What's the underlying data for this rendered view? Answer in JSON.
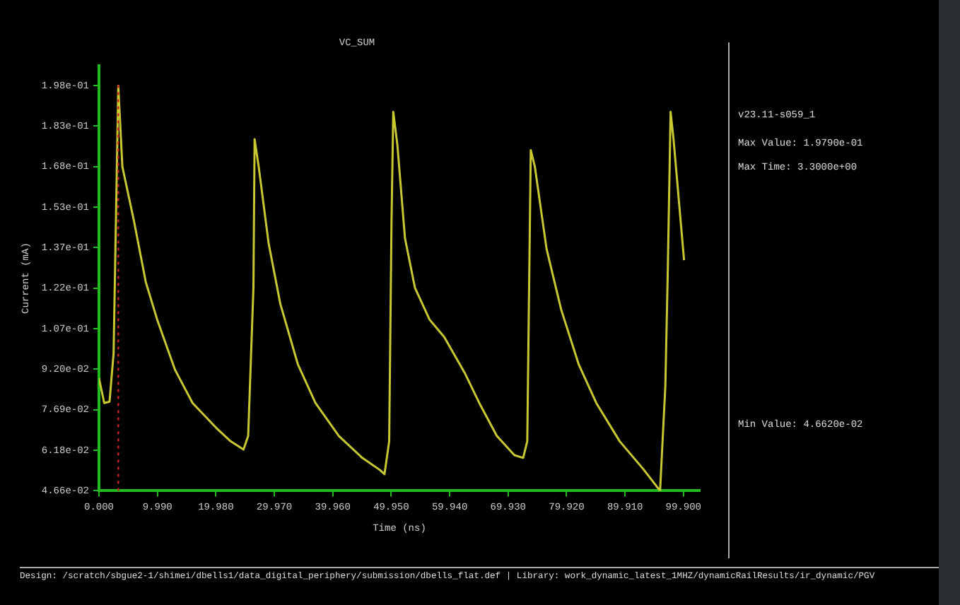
{
  "chart_data": {
    "type": "line",
    "title": "VC_SUM",
    "xlabel": "Time (ns)",
    "ylabel": "Current (mA)",
    "marker": "none",
    "line_style": "solid",
    "x": [
      0,
      0.9,
      1.8,
      2.5,
      3.3,
      4.0,
      6,
      8,
      10,
      13,
      16,
      20,
      22.5,
      24.7,
      25.5,
      26.4,
      26.6,
      27.3,
      29,
      31,
      34,
      37,
      41,
      45,
      48,
      48.8,
      49.6,
      50,
      50.3,
      51,
      52.3,
      54,
      56.5,
      59,
      62.5,
      65,
      68,
      71,
      72.5,
      73.2,
      73.8,
      74.5,
      76.5,
      79,
      82,
      85,
      89,
      93,
      95.9,
      96.8,
      97.2,
      97.7,
      98.2,
      100
    ],
    "series": [
      {
        "color": "#c8c830",
        "values": [
          0.0887,
          0.0794,
          0.0799,
          0.098,
          0.1979,
          0.1677,
          0.1472,
          0.1246,
          0.1102,
          0.0918,
          0.0794,
          0.0702,
          0.0651,
          0.062,
          0.0671,
          0.1225,
          0.178,
          0.1677,
          0.139,
          0.1164,
          0.0938,
          0.0794,
          0.0671,
          0.0589,
          0.0544,
          0.0528,
          0.0651,
          0.1472,
          0.1882,
          0.1759,
          0.141,
          0.1225,
          0.1106,
          0.1041,
          0.0907,
          0.0794,
          0.0671,
          0.0599,
          0.0589,
          0.0651,
          0.1739,
          0.1677,
          0.137,
          0.1143,
          0.0938,
          0.0794,
          0.0651,
          0.0548,
          0.0466,
          0.0856,
          0.1266,
          0.1882,
          0.178,
          0.1328
        ]
      }
    ],
    "xlim": [
      0,
      102.7
    ],
    "ylim": [
      0.0466,
      0.2055
    ],
    "xticks": [
      {
        "value": 0,
        "label": "0.000"
      },
      {
        "value": 9.99,
        "label": "9.990"
      },
      {
        "value": 19.98,
        "label": "19.980"
      },
      {
        "value": 29.97,
        "label": "29.970"
      },
      {
        "value": 39.96,
        "label": "39.960"
      },
      {
        "value": 49.95,
        "label": "49.950"
      },
      {
        "value": 59.94,
        "label": "59.940"
      },
      {
        "value": 69.93,
        "label": "69.930"
      },
      {
        "value": 79.92,
        "label": "79.920"
      },
      {
        "value": 89.91,
        "label": "89.910"
      },
      {
        "value": 99.9,
        "label": "99.900"
      }
    ],
    "yticks": [
      {
        "value": 0.0466,
        "label": "4.66e-02"
      },
      {
        "value": 0.06175,
        "label": "6.18e-02"
      },
      {
        "value": 0.0769,
        "label": "7.69e-02"
      },
      {
        "value": 0.09205,
        "label": "9.20e-02"
      },
      {
        "value": 0.1072,
        "label": "1.07e-01"
      },
      {
        "value": 0.12235,
        "label": "1.22e-01"
      },
      {
        "value": 0.1375,
        "label": "1.37e-01"
      },
      {
        "value": 0.15265,
        "label": "1.53e-01"
      },
      {
        "value": 0.1678,
        "label": "1.68e-01"
      },
      {
        "value": 0.18295,
        "label": "1.83e-01"
      },
      {
        "value": 0.1981,
        "label": "1.98e-01"
      }
    ],
    "ref_lines": [
      {
        "axis": "x",
        "value": 3.3,
        "color": "#cc2222",
        "line_style": "dotted"
      }
    ],
    "annotations": [
      "v23.11-s059_1",
      "Max Value: 1.9790e-01",
      "Max Time: 3.3000e+00",
      "Min Value: 4.6620e-02",
      "Design: /scratch/sbgue2-1/shimei/dbells1/data_digital_periphery/submission/dbells_flat.def | Library: work_dynamic_latest_1MHZ/dynamicRailResults/ir_dynamic/PGV"
    ]
  }
}
